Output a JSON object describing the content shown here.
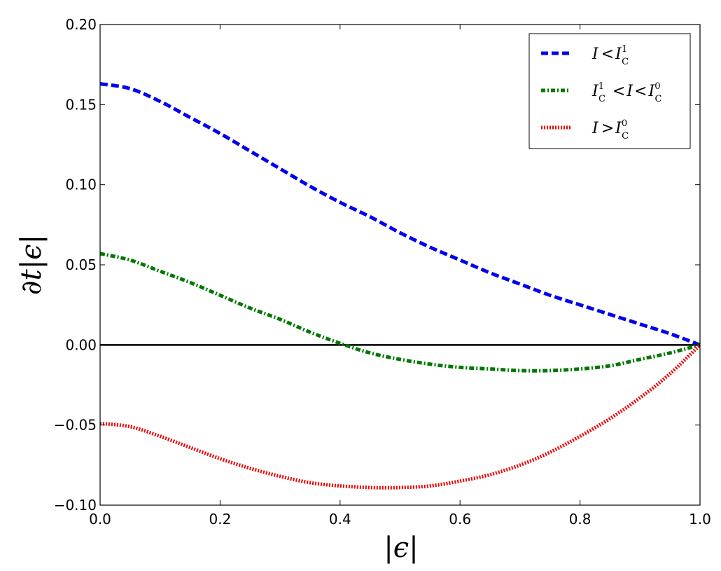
{
  "chart_data": {
    "type": "line",
    "xlabel": "|ϵ|",
    "ylabel": "∂t|ϵ|",
    "xlim": [
      0.0,
      1.0
    ],
    "ylim": [
      -0.1,
      0.2
    ],
    "xticks": [
      0.0,
      0.2,
      0.4,
      0.6,
      0.8,
      1.0
    ],
    "xtick_labels": [
      "0.0",
      "0.2",
      "0.4",
      "0.6",
      "0.8",
      "1.0"
    ],
    "yticks": [
      -0.1,
      -0.05,
      0.0,
      0.05,
      0.1,
      0.15,
      0.2
    ],
    "ytick_labels": [
      "−0.10",
      "−0.05",
      "0.00",
      "0.05",
      "0.10",
      "0.15",
      "0.20"
    ],
    "grid": false,
    "legend_position": "top-right",
    "reference_line": {
      "y": 0.0,
      "color": "#000000"
    },
    "x": [
      0.0,
      0.05,
      0.1,
      0.15,
      0.2,
      0.25,
      0.3,
      0.35,
      0.4,
      0.45,
      0.5,
      0.55,
      0.6,
      0.65,
      0.7,
      0.75,
      0.8,
      0.85,
      0.9,
      0.95,
      1.0
    ],
    "series": [
      {
        "name": "I < I_C^1",
        "color": "#0000ee",
        "style": "dashed",
        "values": [
          0.163,
          0.16,
          0.152,
          0.142,
          0.132,
          0.121,
          0.11,
          0.099,
          0.089,
          0.08,
          0.07,
          0.061,
          0.053,
          0.045,
          0.038,
          0.031,
          0.025,
          0.019,
          0.013,
          0.007,
          0.0
        ]
      },
      {
        "name": "I_C^1 < I < I_C^0",
        "color": "#007700",
        "style": "dash-dot",
        "values": [
          0.057,
          0.053,
          0.046,
          0.039,
          0.031,
          0.023,
          0.016,
          0.008,
          0.001,
          -0.005,
          -0.009,
          -0.012,
          -0.014,
          -0.015,
          -0.016,
          -0.016,
          -0.015,
          -0.013,
          -0.009,
          -0.005,
          0.0
        ]
      },
      {
        "name": "I > I_C^0",
        "color": "#ee0000",
        "style": "dotted",
        "values": [
          -0.049,
          -0.051,
          -0.057,
          -0.064,
          -0.071,
          -0.077,
          -0.082,
          -0.086,
          -0.088,
          -0.089,
          -0.089,
          -0.088,
          -0.085,
          -0.081,
          -0.075,
          -0.067,
          -0.057,
          -0.046,
          -0.033,
          -0.018,
          0.0
        ]
      }
    ],
    "legend": [
      {
        "base": "I",
        "op": "<",
        "rhs": "I",
        "rhs_sup": "1",
        "rhs_sub": "C"
      },
      {
        "lhs": "I",
        "lhs_sup": "1",
        "lhs_sub": "C",
        "op1": "<",
        "mid": "I",
        "op2": "<",
        "rhs": "I",
        "rhs_sup": "0",
        "rhs_sub": "C"
      },
      {
        "base": "I",
        "op": ">",
        "rhs": "I",
        "rhs_sup": "0",
        "rhs_sub": "C"
      }
    ]
  }
}
